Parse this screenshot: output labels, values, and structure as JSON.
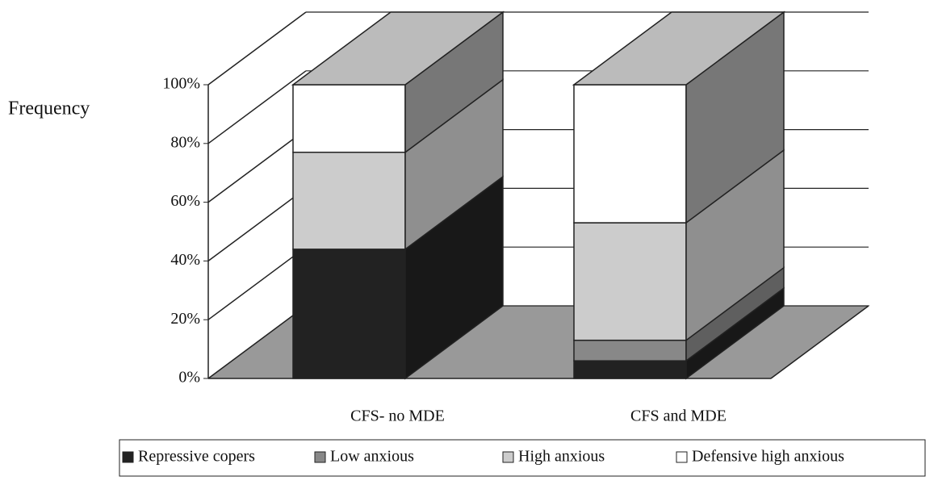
{
  "chart_data": {
    "type": "stacked_bar_3d",
    "y_label": "Frequency",
    "categories": [
      "CFS- no MDE",
      "CFS and MDE"
    ],
    "series": [
      {
        "name": "Repressive copers",
        "color": "#222222",
        "values": [
          44,
          6
        ]
      },
      {
        "name": "Low anxious",
        "color": "#888888",
        "values": [
          0,
          7
        ]
      },
      {
        "name": "High anxious",
        "color": "#cccccc",
        "values": [
          33,
          40
        ]
      },
      {
        "name": "Defensive high anxious",
        "color": "#ffffff",
        "values": [
          23,
          47
        ]
      }
    ],
    "ylim": [
      0,
      100
    ],
    "yticks": [
      {
        "value": 0,
        "label": "0%"
      },
      {
        "value": 20,
        "label": "20%"
      },
      {
        "value": 40,
        "label": "40%"
      },
      {
        "value": 60,
        "label": "60%"
      },
      {
        "value": 80,
        "label": "80%"
      },
      {
        "value": 100,
        "label": "100%"
      }
    ],
    "grid": true
  }
}
